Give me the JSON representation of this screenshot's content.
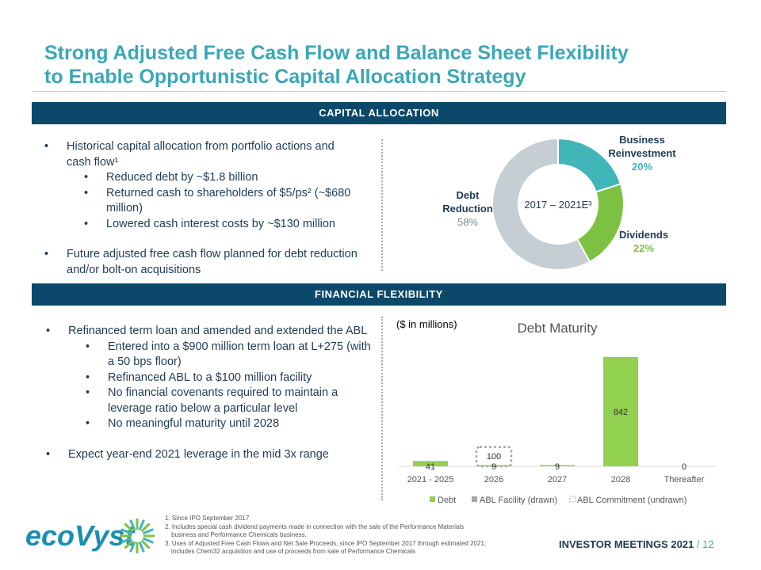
{
  "title": {
    "line1": "Strong Adjusted Free Cash Flow and Balance Sheet Flexibility",
    "line2": "to Enable Opportunistic Capital Allocation Strategy"
  },
  "capital_allocation": {
    "header": "CAPITAL ALLOCATION",
    "bullets": [
      "Historical capital allocation from portfolio actions and cash flow¹",
      "Reduced debt by ~$1.8 billion",
      "Returned cash to shareholders of $5/ps² (~$680 million)",
      "Lowered cash interest costs by ~$130 million",
      "Future adjusted free cash flow planned for debt reduction and/or bolt-on acquisitions"
    ]
  },
  "financial_flexibility": {
    "header": "FINANCIAL FLEXIBILITY",
    "bullets": [
      "Refinanced term loan and amended and extended the ABL",
      "Entered into a $900 million term loan at L+275 (with a 50 bps floor)",
      "Refinanced ABL to a $100 million facility",
      "No financial covenants required to maintain a leverage ratio below a particular level",
      "No meaningful maturity until 2028",
      "Expect year-end 2021 leverage in the mid 3x range"
    ]
  },
  "chart_data": [
    {
      "type": "pie",
      "title": "2017 – 2021E³",
      "slices": [
        {
          "label": "Business Reinvestment",
          "value": 20,
          "display": "20%",
          "color": "#41b6b8"
        },
        {
          "label": "Dividends",
          "value": 22,
          "display": "22%",
          "color": "#7dc142"
        },
        {
          "label": "Debt Reduction",
          "value": 58,
          "display": "58%",
          "color": "#c5cfd3"
        }
      ]
    },
    {
      "type": "bar",
      "title": "Debt Maturity",
      "unit_note": "($ in millions)",
      "categories": [
        "2021 - 2025",
        "2026",
        "2027",
        "2028",
        "Thereafter"
      ],
      "series": [
        {
          "name": "Debt",
          "values": [
            41,
            9,
            9,
            842,
            0
          ],
          "color": "#92d050"
        },
        {
          "name": "ABL Facility (drawn)",
          "values": [
            0,
            0,
            0,
            0,
            0
          ],
          "color": "#a6a6a6"
        },
        {
          "name": "ABL Commitment (undrawn)",
          "values": [
            0,
            100,
            0,
            0,
            0
          ],
          "color": "#a6a6a6"
        }
      ],
      "data_labels": [
        "41",
        "9",
        "9",
        "842",
        "0"
      ],
      "abl_label": "100",
      "legend": "bottom"
    }
  ],
  "footnotes": [
    "1. Since IPO September 2017",
    "2. Includes special cash dividend payments made in connection with the sale of the Performance Materials",
    "business and Performance Chemicals business.",
    "3. Uses of Adjusted Free Cash Flows and Net Sale Proceeds, since IPO September 2017 through estimated 2021;",
    "includes Chem32 acquisition and use of proceeds from sale of Performance Chemicals"
  ],
  "footer": {
    "logo": "ecoVyst",
    "event": "INVESTOR MEETINGS 2021",
    "page": "12"
  }
}
